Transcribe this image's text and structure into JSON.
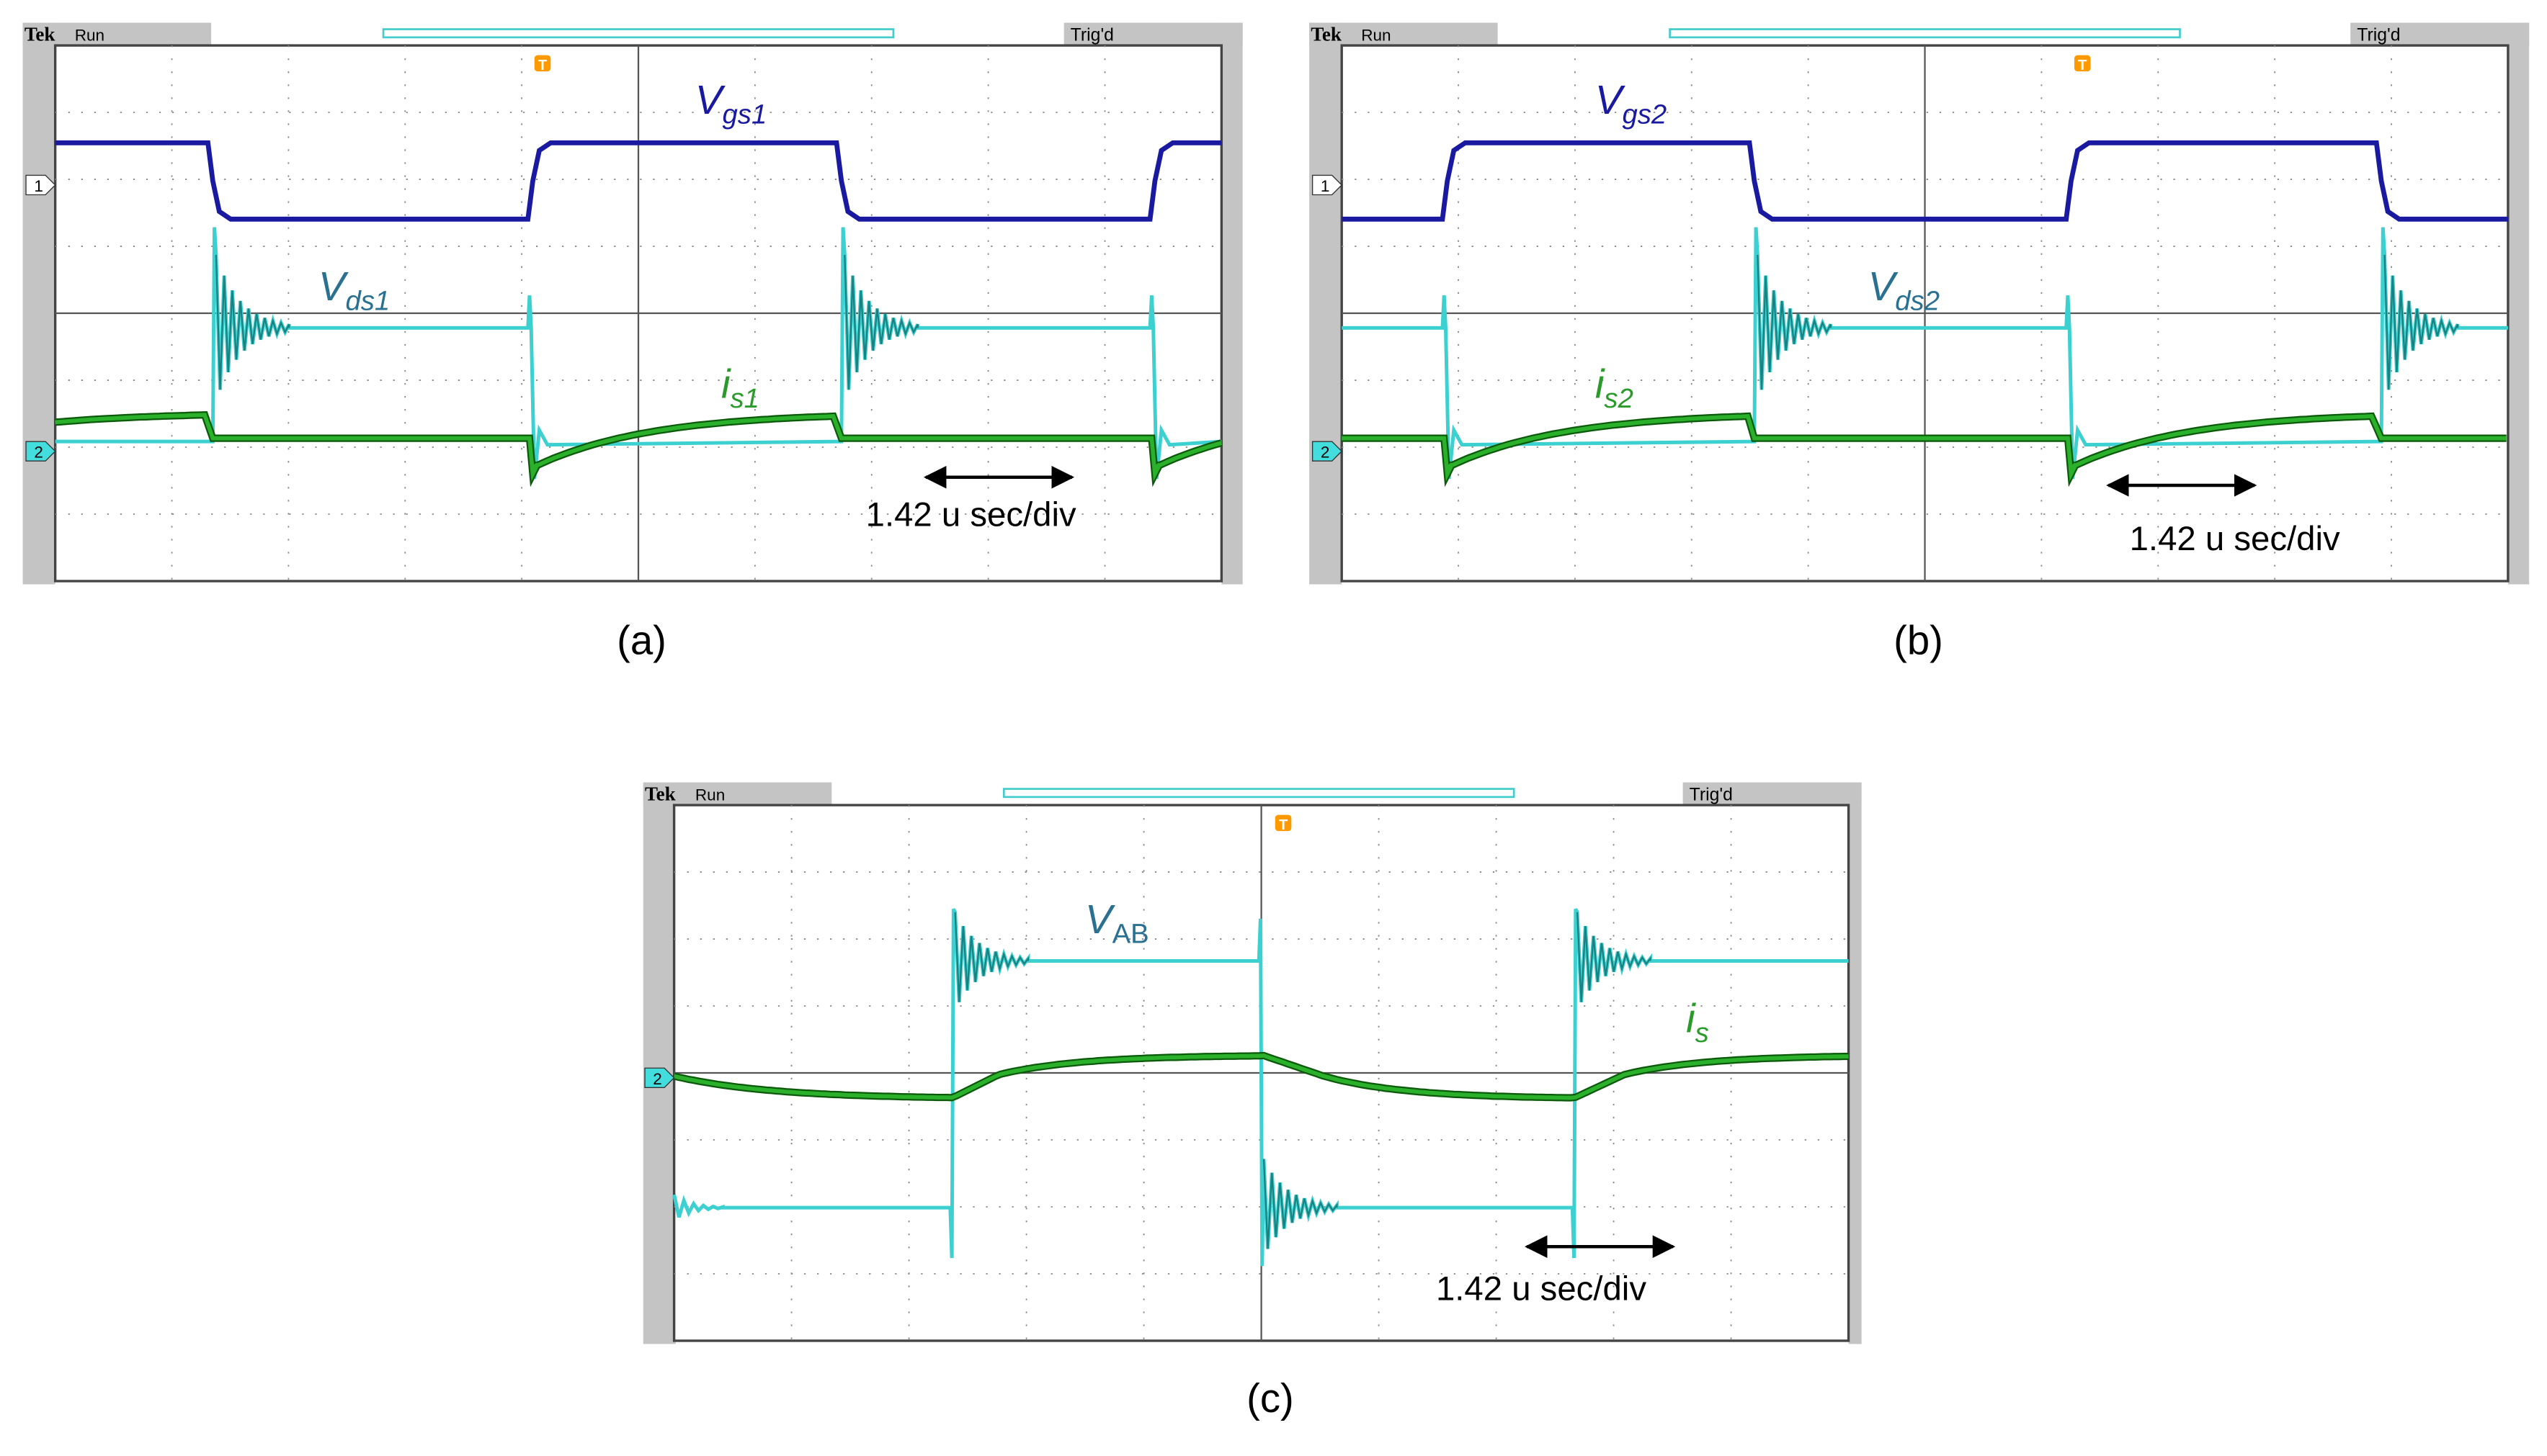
{
  "panels": [
    {
      "caption": "(a)",
      "header": {
        "brand": "Tek",
        "status": "Run",
        "trigger": "Trig'd",
        "trigger_marker": "T"
      },
      "channel_markers": [
        "1",
        "2"
      ],
      "signals": [
        {
          "main": "V",
          "sub": "gs1"
        },
        {
          "main": "V",
          "sub": "ds1"
        },
        {
          "main": "i",
          "sub": "s1"
        }
      ],
      "scale": "1.42  u sec/div"
    },
    {
      "caption": "(b)",
      "header": {
        "brand": "Tek",
        "status": "Run",
        "trigger": "Trig'd",
        "trigger_marker": "T"
      },
      "channel_markers": [
        "1",
        "2"
      ],
      "signals": [
        {
          "main": "V",
          "sub": "gs2"
        },
        {
          "main": "V",
          "sub": "ds2"
        },
        {
          "main": "i",
          "sub": "s2"
        }
      ],
      "scale": "1.42  u sec/div"
    },
    {
      "caption": "(c)",
      "header": {
        "brand": "Tek",
        "status": "Run",
        "trigger": "Trig'd",
        "trigger_marker": "T"
      },
      "channel_markers": [
        "2"
      ],
      "signals": [
        {
          "main": "V",
          "sub": "AB"
        },
        {
          "main": "i",
          "sub": "s"
        }
      ],
      "scale": "1.42  u sec/div"
    }
  ]
}
